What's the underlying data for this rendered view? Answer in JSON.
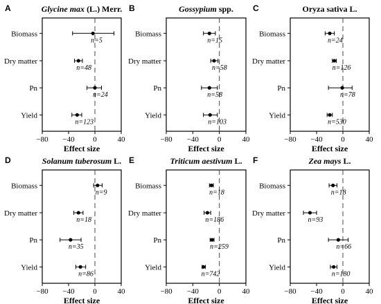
{
  "chart_data": [
    {
      "type": "scatter",
      "panel": "A",
      "title_italic": "Glycine max",
      "title_rest": " (L.) Merr.",
      "xlabel": "Effect size",
      "xlim": [
        -80,
        40
      ],
      "xticks": [
        "−80",
        "−40",
        "0",
        "40"
      ],
      "reference_line": 0,
      "categories": [
        "Biomass",
        "Dry matter",
        "Pn",
        "Yield"
      ],
      "mean": [
        -3,
        -25,
        0,
        -27
      ],
      "ci_low": [
        -34,
        -31,
        -12,
        -35
      ],
      "ci_high": [
        29,
        -19,
        10,
        -20
      ],
      "n_labels": [
        "n=5",
        "n=48",
        "n=24",
        "n=123"
      ]
    },
    {
      "type": "scatter",
      "panel": "B",
      "title_italic": "Gossypium",
      "title_rest": " spp.",
      "xlabel": "Effect size",
      "xlim": [
        -80,
        40
      ],
      "xticks": [
        "−80",
        "−40",
        "0",
        "40"
      ],
      "reference_line": 0,
      "categories": [
        "Biomass",
        "Dry matter",
        "Pn",
        "Yield"
      ],
      "mean": [
        -15,
        -8,
        -15,
        -14
      ],
      "ci_low": [
        -24,
        -13,
        -27,
        -24
      ],
      "ci_high": [
        -6,
        -2,
        -3,
        -3
      ],
      "n_labels": [
        "n=15",
        "n=58",
        "n=58",
        "n=103"
      ]
    },
    {
      "type": "scatter",
      "panel": "C",
      "title_italic": "",
      "title_rest": "Oryza sativa L.",
      "xlabel": "Effect size",
      "xlim": [
        -80,
        40
      ],
      "xticks": [
        "−80",
        "−40",
        "0",
        "40"
      ],
      "reference_line": 0,
      "categories": [
        "Biomass",
        "Dry matter",
        "Pn",
        "Yield"
      ],
      "mean": [
        -20,
        -13,
        -1,
        -20
      ],
      "ci_low": [
        -27,
        -16,
        -22,
        -24
      ],
      "ci_high": [
        -13,
        -10,
        14,
        -16
      ],
      "n_labels": [
        "n=24",
        "n=126",
        "n=78",
        "n=530"
      ]
    },
    {
      "type": "scatter",
      "panel": "D",
      "title_italic": "Solanum tuberosum",
      "title_rest": " L.",
      "xlabel": "Effect size",
      "xlim": [
        -80,
        40
      ],
      "xticks": [
        "−80",
        "−40",
        "0",
        "40"
      ],
      "reference_line": 0,
      "categories": [
        "Biomass",
        "Dry matter",
        "Pn",
        "Yield"
      ],
      "mean": [
        4,
        -25,
        -37,
        -22
      ],
      "ci_low": [
        -2,
        -32,
        -53,
        -29
      ],
      "ci_high": [
        11,
        -18,
        -21,
        -14
      ],
      "n_labels": [
        "n=9",
        "n=18",
        "n=35",
        "n=86"
      ]
    },
    {
      "type": "scatter",
      "panel": "E",
      "title_italic": "Triticum aestivum",
      "title_rest": " L.",
      "xlabel": "Effect size",
      "xlim": [
        -80,
        40
      ],
      "xticks": [
        "−80",
        "−40",
        "0",
        "40"
      ],
      "reference_line": 0,
      "categories": [
        "Biomass",
        "Dry matter",
        "Pn",
        "Yield"
      ],
      "mean": [
        -12,
        -18,
        -11,
        -24
      ],
      "ci_low": [
        -15,
        -23,
        -14,
        -26
      ],
      "ci_high": [
        -9,
        -13,
        -8,
        -21
      ],
      "n_labels": [
        "n=18",
        "n=186",
        "n=259",
        "n=742"
      ]
    },
    {
      "type": "scatter",
      "panel": "F",
      "title_italic": "Zea mays",
      "title_rest": " L.",
      "xlabel": "Effect size",
      "xlim": [
        -80,
        40
      ],
      "xticks": [
        "−80",
        "−40",
        "0",
        "40"
      ],
      "reference_line": 0,
      "categories": [
        "Biomass",
        "Dry matter",
        "Pn",
        "Yield"
      ],
      "mean": [
        -15,
        -50,
        -7,
        -14
      ],
      "ci_low": [
        -21,
        -60,
        -22,
        -19
      ],
      "ci_high": [
        -9,
        -40,
        8,
        -9
      ],
      "n_labels": [
        "n=18",
        "n=93",
        "n=66",
        "n=180"
      ]
    }
  ]
}
